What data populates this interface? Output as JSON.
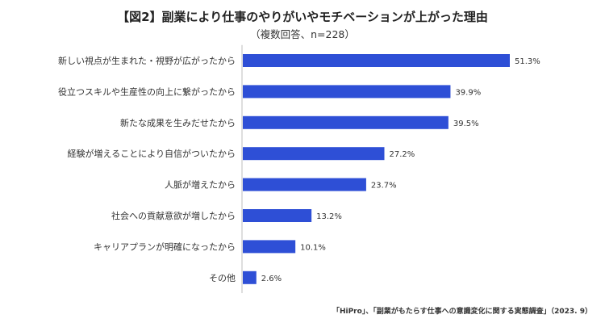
{
  "header": {
    "title": "【図2】副業により仕事のやりがいやモチベーションが上がった理由",
    "subtitle": "（複数回答、n=228）"
  },
  "footer": {
    "source": "「HiPro」、「副業がもたらす仕事への意識変化に関する実態調査」（2023. 9）"
  },
  "chart_data": {
    "type": "bar",
    "orientation": "horizontal",
    "title": "【図2】副業により仕事のやりがいやモチベーションが上がった理由",
    "subtitle": "（複数回答、n=228）",
    "categories": [
      "新しい視点が生まれた・視野が広がったから",
      "役立つスキルや生産性の向上に繋がったから",
      "新たな成果を生みだせたから",
      "経験が増えることにより自信がついたから",
      "人脈が増えたから",
      "社会への貢献意欲が増したから",
      "キャリアプランが明確になったから",
      "その他"
    ],
    "values": [
      51.3,
      39.9,
      39.5,
      27.2,
      23.7,
      13.2,
      10.1,
      2.6
    ],
    "data_labels": [
      "51.3%",
      "39.9%",
      "39.5%",
      "27.2%",
      "23.7%",
      "13.2%",
      "10.1%",
      "2.6%"
    ],
    "unit": "%",
    "xlim": [
      0,
      51.3
    ],
    "grid": false,
    "legend": "none",
    "bar_color": "#2E4FD6",
    "axis_color": "#bdbdbd"
  }
}
